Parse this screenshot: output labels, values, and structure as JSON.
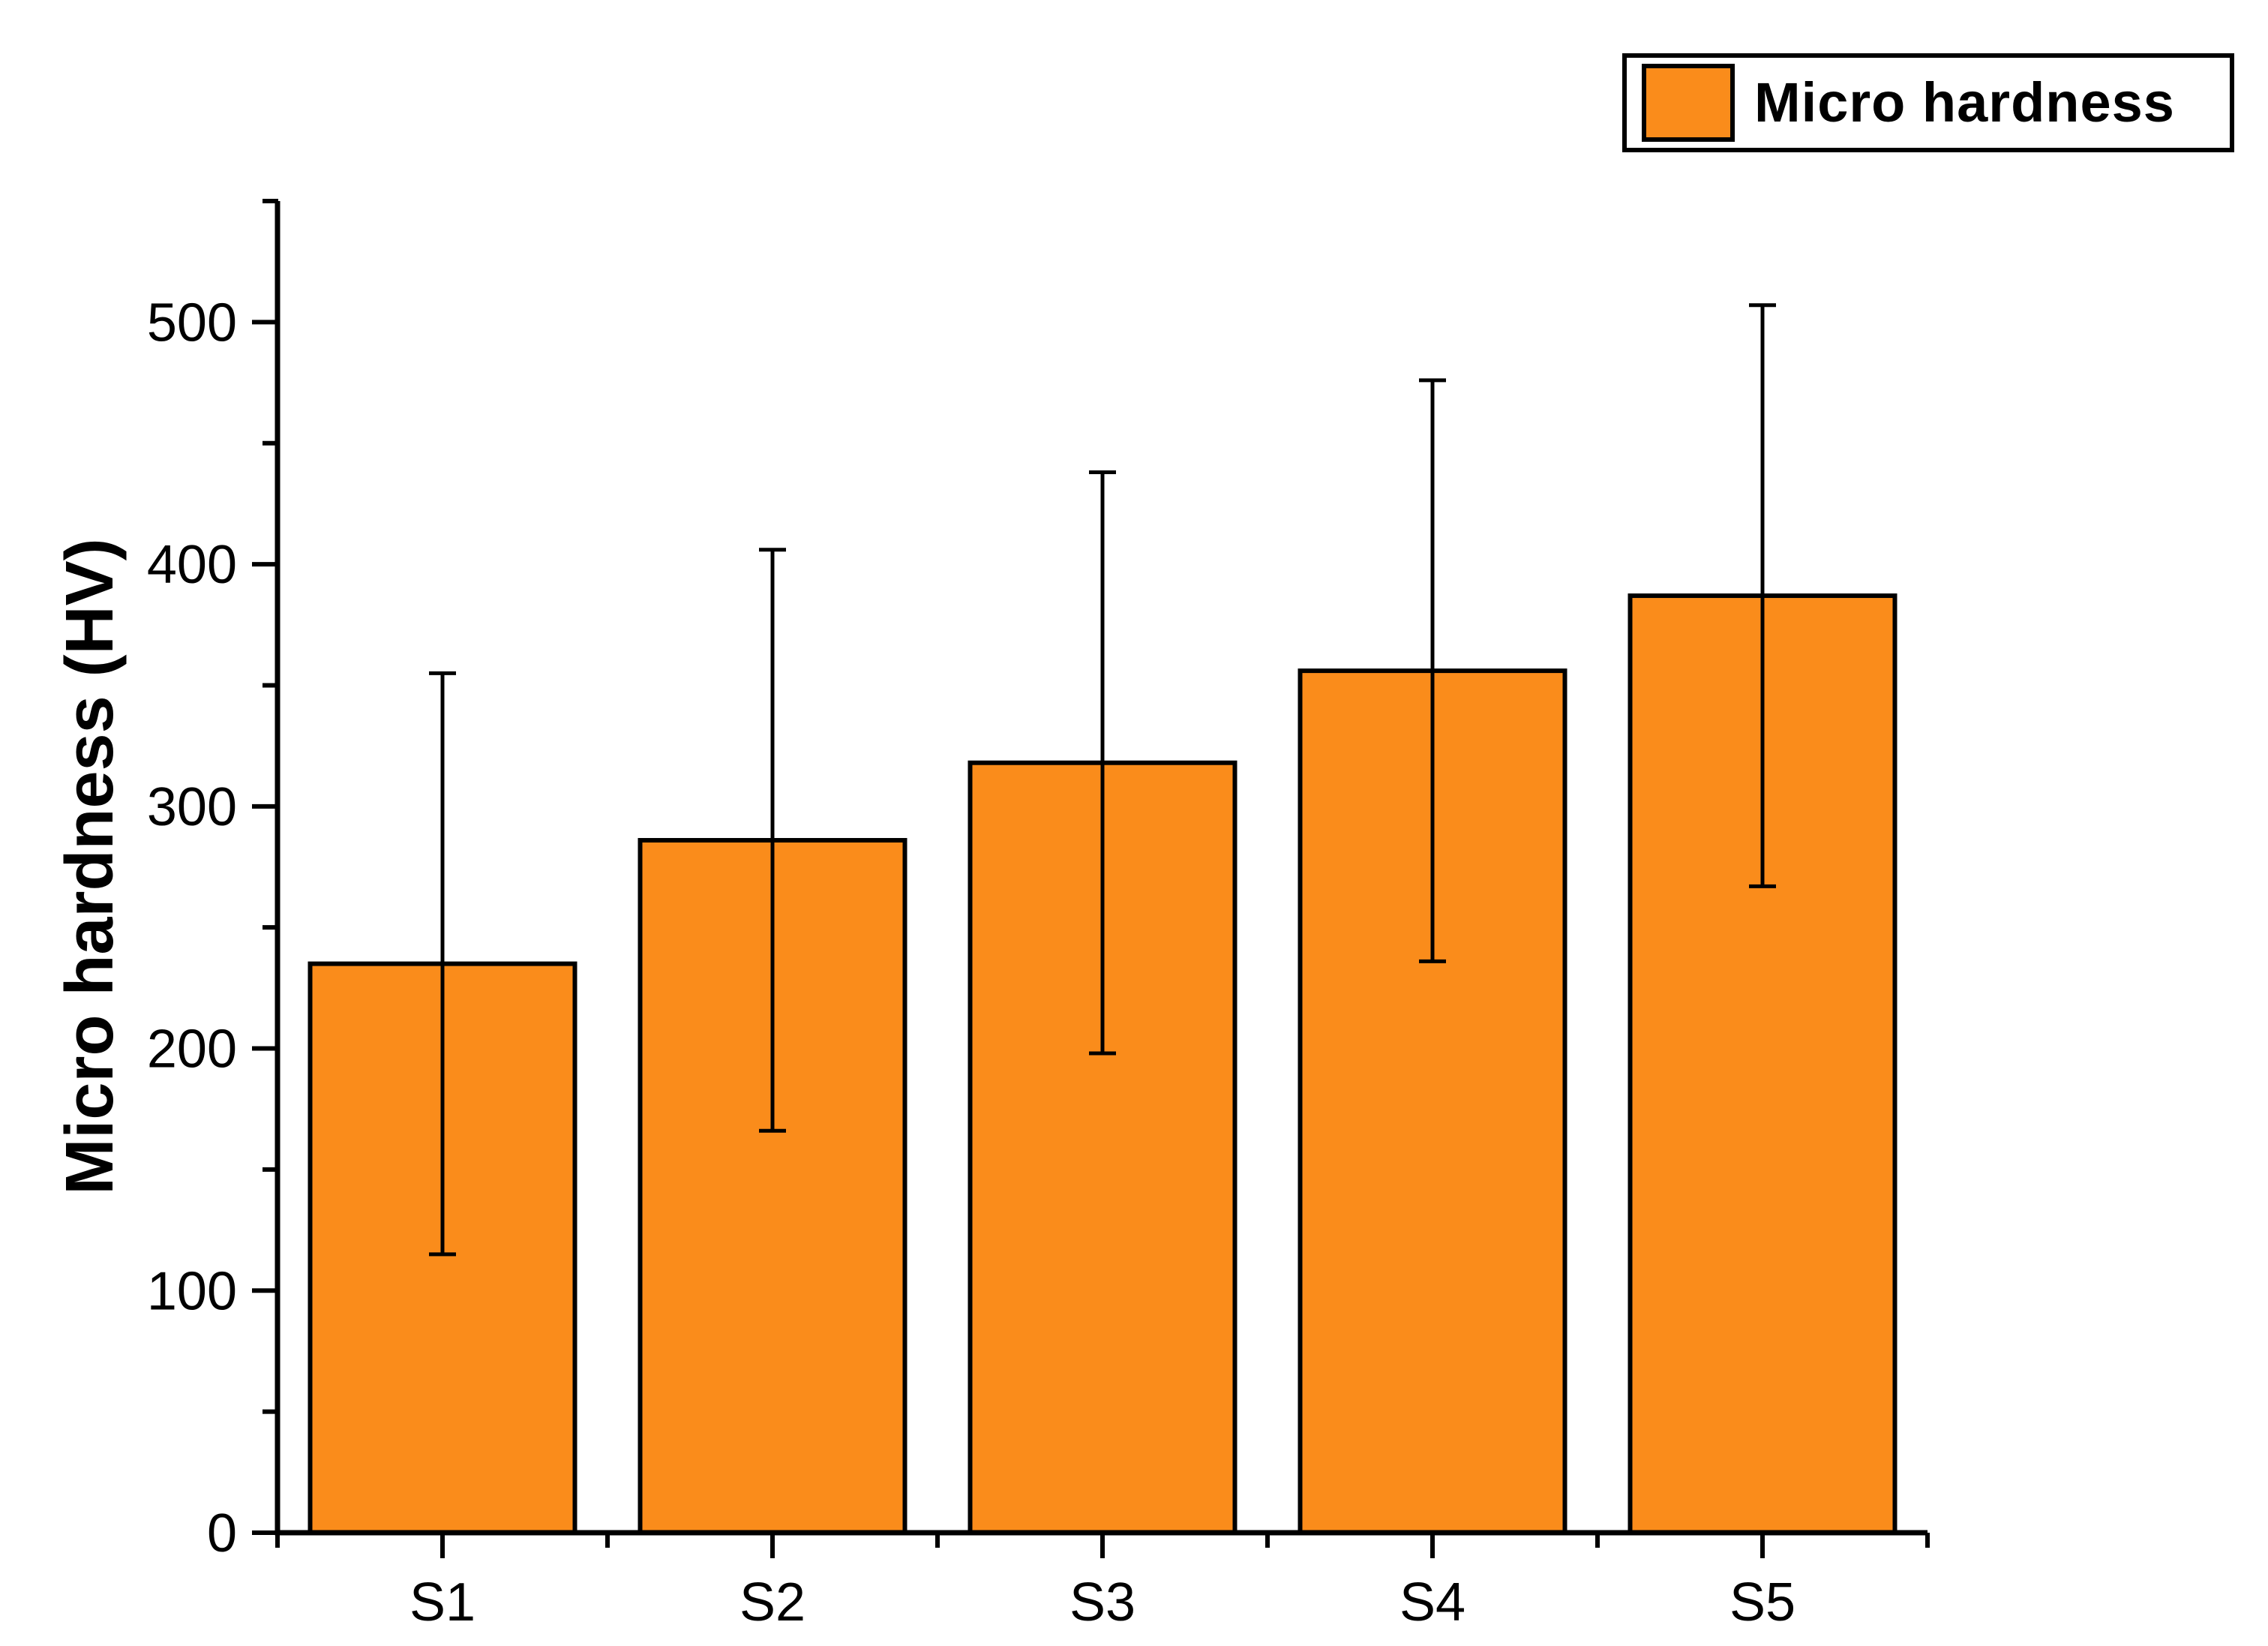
{
  "chart_data": {
    "type": "bar",
    "title": "",
    "categories": [
      "S1",
      "S2",
      "S3",
      "S4",
      "S5"
    ],
    "series": [
      {
        "name": "Micro hardness",
        "values": [
          235,
          286,
          318,
          356,
          387
        ],
        "errors": [
          120,
          120,
          120,
          120,
          120
        ]
      }
    ],
    "xlabel": "",
    "ylabel": "Micro hardness (HV)",
    "ylim": [
      0,
      550
    ],
    "yticks": [
      0,
      100,
      200,
      300,
      400,
      500
    ],
    "y_minor_step": 50,
    "grid": false,
    "legend_position": "top-right",
    "bar_color": "#FA8C1B",
    "bar_border_color": "#000000",
    "error_bar_color": "#000000",
    "axis_color": "#000000",
    "legend": {
      "entries": [
        {
          "label": "Micro hardness",
          "swatch_color": "#FA8C1B"
        }
      ]
    }
  }
}
